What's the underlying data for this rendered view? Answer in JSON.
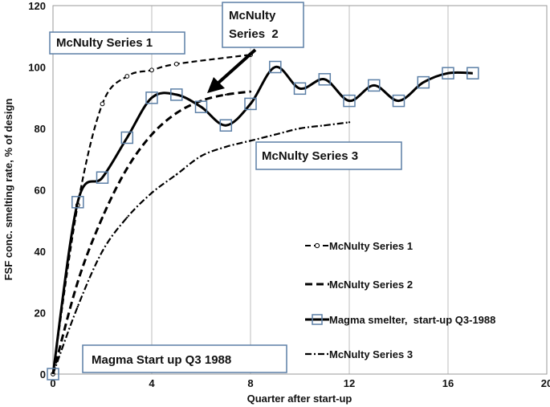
{
  "chart_data": {
    "type": "line",
    "title": "",
    "xlabel": "Quarter after start-up",
    "ylabel": "FSF  conc. smelting rate, % of design",
    "xlim": [
      0,
      20
    ],
    "ylim": [
      0,
      120
    ],
    "xticks": [
      0,
      4,
      8,
      12,
      16,
      20
    ],
    "yticks": [
      0,
      20,
      40,
      60,
      80,
      100,
      120
    ],
    "grid": "vertical",
    "legend_position": "lower-right",
    "series": [
      {
        "name": "McNulty Series 1",
        "style": "dashed-open-circle",
        "color": "#000000",
        "x": [
          0,
          1,
          2,
          3,
          4,
          5,
          8
        ],
        "y": [
          0,
          55,
          88,
          97,
          99,
          101,
          104
        ]
      },
      {
        "name": "McNulty Series 2",
        "style": "dashed-long",
        "color": "#000000",
        "x": [
          0,
          1,
          2,
          3,
          4,
          5,
          6,
          7,
          8
        ],
        "y": [
          0,
          30,
          51,
          67,
          78,
          85,
          89,
          91,
          92
        ]
      },
      {
        "name": "Magma smelter,  start-up Q3-1988",
        "style": "solid-open-square",
        "color": "#000000",
        "x": [
          0,
          1,
          2,
          3,
          4,
          5,
          6,
          7,
          8,
          9,
          10,
          11,
          12,
          13,
          14,
          15,
          16,
          17
        ],
        "y": [
          0,
          56,
          64,
          77,
          90,
          91,
          87,
          81,
          88,
          100,
          93,
          96,
          89,
          94,
          89,
          95,
          98,
          98
        ]
      },
      {
        "name": "McNulty Series 3",
        "style": "dash-dot",
        "color": "#000000",
        "x": [
          0,
          1,
          2,
          3,
          4,
          5,
          6,
          7,
          8,
          9,
          10,
          11,
          12
        ],
        "y": [
          0,
          22,
          40,
          51,
          59,
          65,
          71,
          74,
          76,
          78,
          80,
          81,
          82
        ]
      }
    ],
    "annotations": [
      {
        "text": "McNulty Series 1"
      },
      {
        "text_lines": [
          "McNulty",
          "Series  2"
        ]
      },
      {
        "text": "McNulty Series 3"
      },
      {
        "text": "Magma Start up Q3 1988"
      }
    ]
  }
}
